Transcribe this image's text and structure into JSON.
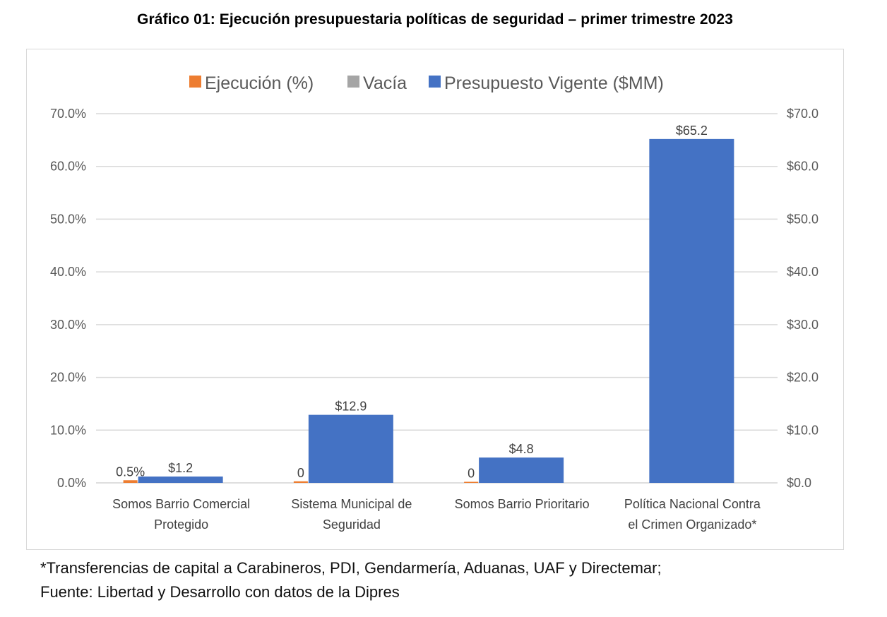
{
  "title": "Gráfico 01: Ejecución presupuestaria políticas de seguridad – primer trimestre 2023",
  "footnotes": [
    "*Transferencias de capital a Carabineros, PDI, Gendarmería, Aduanas, UAF y Directemar;",
    "Fuente: Libertad y Desarrollo con datos de la Dipres"
  ],
  "colors": {
    "ejecucion": "#ed7d31",
    "vacia": "#a5a5a5",
    "presupuesto": "#4472c4",
    "grid": "#d9d9d9"
  },
  "chart_data": {
    "type": "bar",
    "title": "Gráfico 01: Ejecución presupuestaria políticas de seguridad – primer trimestre 2023",
    "categories": [
      [
        "Somos Barrio Comercial",
        "Protegido"
      ],
      [
        "Sistema Municipal de",
        "Seguridad"
      ],
      [
        "Somos Barrio Prioritario"
      ],
      [
        "Política Nacional Contra",
        "el Crimen Organizado*"
      ]
    ],
    "legend": {
      "placement": "top",
      "entries": [
        "Ejecución (%)",
        "Vacía",
        "Presupuesto Vigente ($MM)"
      ]
    },
    "series": [
      {
        "name": "Ejecución (%)",
        "axis": "left",
        "values": [
          0.5,
          0.3,
          0.2,
          0.0
        ],
        "labels": [
          "0.5%",
          "0",
          "0",
          ""
        ]
      },
      {
        "name": "Vacía",
        "axis": "left",
        "values": [
          0,
          0,
          0,
          0
        ],
        "labels": [
          "",
          "",
          "",
          ""
        ]
      },
      {
        "name": "Presupuesto Vigente ($MM)",
        "axis": "right",
        "values": [
          1.2,
          12.9,
          4.8,
          65.2
        ],
        "labels": [
          "$1.2",
          "$12.9",
          "$4.8",
          "$65.2"
        ]
      }
    ],
    "y_left": {
      "range": [
        0,
        70
      ],
      "ticks": [
        0,
        10,
        20,
        30,
        40,
        50,
        60,
        70
      ],
      "tick_labels": [
        "0.0%",
        "10.0%",
        "20.0%",
        "30.0%",
        "40.0%",
        "50.0%",
        "60.0%",
        "70.0%"
      ]
    },
    "y_right": {
      "range": [
        0,
        70
      ],
      "ticks": [
        0,
        10,
        20,
        30,
        40,
        50,
        60,
        70
      ],
      "tick_labels": [
        "$0.0",
        "$10.0",
        "$20.0",
        "$30.0",
        "$40.0",
        "$50.0",
        "$60.0",
        "$70.0"
      ]
    },
    "grid": true
  }
}
